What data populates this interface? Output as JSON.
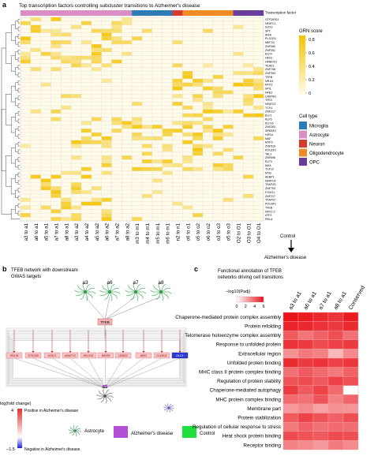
{
  "panel_a": {
    "letter": "a",
    "title": "Top transcription factors controlling subcluster transitions to Alzheimer's disease",
    "tf_header": "Transcription factor",
    "transitions": [
      "a3 to a1",
      "a6 to a1",
      "a5 to a1",
      "a7 to a1",
      "a8 to a1",
      "a3 to a2",
      "a4 to a2",
      "a5 to a2",
      "a6 to a2",
      "a7 to a2",
      "a8 to a2",
      "m3 to m1",
      "m4 to m1",
      "m5 to m1",
      "m6 to m1",
      "n2 to n1",
      "o6 to o1",
      "o5 to o2",
      "o6 to o2",
      "o3 to o3",
      "o5 to o3",
      "O2 to O1",
      "O3 to O1",
      "O4 to O1"
    ],
    "column_cell_types": [
      "Astrocyte",
      "Astrocyte",
      "Astrocyte",
      "Astrocyte",
      "Astrocyte",
      "Astrocyte",
      "Astrocyte",
      "Astrocyte",
      "Astrocyte",
      "Astrocyte",
      "Astrocyte",
      "Microglia",
      "Microglia",
      "Microglia",
      "Microglia",
      "Neuron",
      "Oligodendrocyte",
      "Oligodendrocyte",
      "Oligodendrocyte",
      "Oligodendrocyte",
      "Oligodendrocyte",
      "OPC",
      "OPC",
      "OPC"
    ],
    "tfs": [
      "GTF2IRD1",
      "NFATC1",
      "SOX2",
      "SP1",
      "IRF8",
      "PLSCR1",
      "MEF2C",
      "ZNF460",
      "ZNF281",
      "ELF4",
      "HES1",
      "HMBOX1",
      "TEAD1",
      "ZNF708",
      "ZNF394",
      "TFEB",
      "NR1I3",
      "RFX3",
      "SPI1",
      "NFE2",
      "CAMTA1",
      "TFE3",
      "NFATC2",
      "TCF4",
      "ZNF217",
      "ELF1",
      "KLF5",
      "KLF16",
      "ZNF263",
      "SREBF2",
      "HIF1A",
      "MAF",
      "MYF5",
      "ZNF516",
      "POU2F2",
      "TAL1",
      "ZNF696",
      "ELF3",
      "MAX",
      "TCF12",
      "MYB",
      "AEBP1",
      "NFATC4",
      "TFAP2D",
      "ZNF704",
      "FOXO1",
      "ZNF217",
      "TFAP2C",
      "POU3F1",
      "TFEB",
      "NKX2-2",
      "ATF4",
      "RELA"
    ],
    "legend": {
      "grn_title": "GRN score",
      "grn_ticks": [
        "0.8",
        "0.6",
        "0.4",
        "0.2",
        "0"
      ],
      "cell_type_title": "Cell type",
      "cell_types": [
        {
          "name": "Microglia",
          "color": "#2e7bb5"
        },
        {
          "name": "Astrocyte",
          "color": "#d98fc4"
        },
        {
          "name": "Neuron",
          "color": "#d63a2f"
        },
        {
          "name": "Oligodendrocyte",
          "color": "#f08a24"
        },
        {
          "name": "OPC",
          "color": "#6a3d9a"
        }
      ]
    },
    "arrow_top": "Control",
    "arrow_bottom": "Alzheimer's disease",
    "scale_colors": {
      "low": "#fffbe8",
      "high": "#f5c400"
    }
  },
  "panel_b": {
    "letter": "b",
    "title_line1": "TFEB network with downstream",
    "title_line2": "GWAS targets",
    "top_nodes": [
      "a3",
      "a6",
      "a7",
      "a8"
    ],
    "tf_node": "TFEB",
    "targets": [
      "PDLIN",
      "STK32B",
      "EDIL3",
      "ANKFY2",
      "HECW1",
      "WDR4",
      "LEMD2",
      "BIN3",
      "CLDN11",
      "DLC1"
    ],
    "bottom_node": "a1",
    "colorbar_title": "log(fold change)",
    "colorbar_max": "4",
    "colorbar_min": "−1.5",
    "positive_label": "Positive in Alzheimer's disease",
    "negative_label": "Negative in Alzheimer's disease",
    "legend_astrocyte": "Astrocyte",
    "legend_ad": "Alzheimer's disease",
    "legend_control": "Control",
    "colors": {
      "ad": "#b24fd6",
      "control": "#1fe03c",
      "pos": "#e03030",
      "neg": "#2020d0"
    }
  },
  "panel_c": {
    "letter": "c",
    "title_line1": "Functional annotation of TFEB",
    "title_line2": "networks driving cell transitions",
    "scale_title": "−log10(Padj)",
    "scale_ticks": [
      "0",
      "2",
      "4",
      "6"
    ],
    "columns": [
      "a3 to a1",
      "a6 to a1",
      "a7 to a1",
      "a8 to a1",
      "Conserved"
    ],
    "terms": [
      "Chaperone-mediated protein complex assembly",
      "Protein refolding",
      "Telomerase holoenzyme complex assembly",
      "Response to unfolded protein",
      "Extracellular region",
      "Unfolded protein binding",
      "MHC class II protein complex binding",
      "Regulation of protein stability",
      "Chaperone-mediated autophagy",
      "MHC protein complex binding",
      "Membrane part",
      "Protein stabilization",
      "Regulation of cellular response to stress",
      "Heat shock protein binding",
      "Receptor binding"
    ],
    "values": [
      [
        6.0,
        5.8,
        5.5,
        5.2,
        5.8
      ],
      [
        5.6,
        5.5,
        5.2,
        5.0,
        5.4
      ],
      [
        4.2,
        3.5,
        4.0,
        4.5,
        3.6
      ],
      [
        5.2,
        5.0,
        4.6,
        4.8,
        5.0
      ],
      [
        2.8,
        3.4,
        3.2,
        1.8,
        3.0
      ],
      [
        5.4,
        5.0,
        5.2,
        4.8,
        5.1
      ],
      [
        3.6,
        4.2,
        3.8,
        3.4,
        4.0
      ],
      [
        4.4,
        4.6,
        4.2,
        4.8,
        4.5
      ],
      [
        5.0,
        4.2,
        4.8,
        3.8,
        0.0
      ],
      [
        3.8,
        3.6,
        4.4,
        3.2,
        3.9
      ],
      [
        2.6,
        3.0,
        2.4,
        2.8,
        2.7
      ],
      [
        4.2,
        4.8,
        4.4,
        4.0,
        4.5
      ],
      [
        3.4,
        4.0,
        3.6,
        3.8,
        3.7
      ],
      [
        4.6,
        4.4,
        4.2,
        4.6,
        4.5
      ],
      [
        3.2,
        3.0,
        2.6,
        3.4,
        3.0
      ]
    ]
  }
}
